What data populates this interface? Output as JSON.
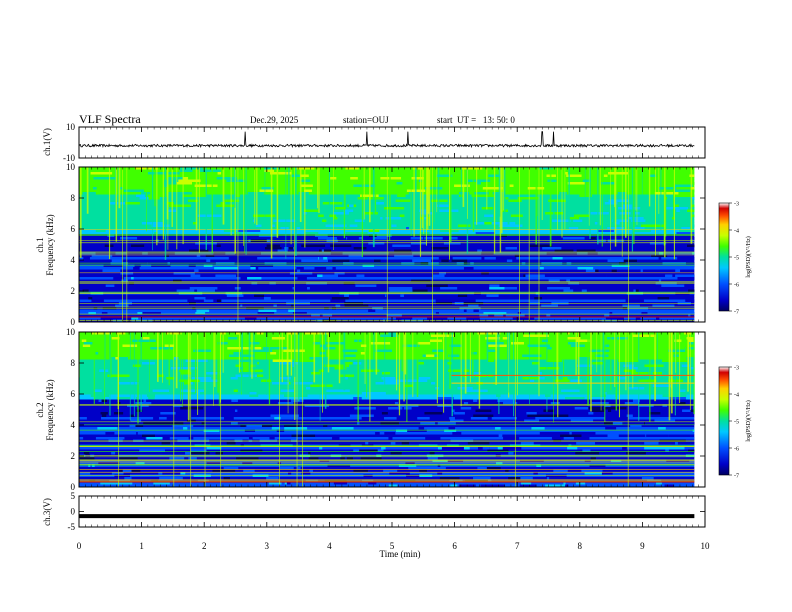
{
  "header": {
    "title": "VLF Spectra",
    "date": "Dec.29, 2025",
    "station": "station=OUJ",
    "start": "start  UT =   13: 50: 0"
  },
  "chart_data": [
    {
      "type": "line",
      "name": "ch1-waveform",
      "ylabel": "ch.1(V)",
      "ylim": [
        -10,
        10
      ],
      "yticks": [
        "10",
        "-10"
      ],
      "baseline_v": -2,
      "spikes_min": [
        2.65,
        4.6,
        5.25,
        7.4,
        7.58
      ]
    },
    {
      "type": "heatmap",
      "name": "ch1-spectrogram",
      "ylabel": "ch.1\nFrequency (kHz)",
      "ylim": [
        0,
        10
      ],
      "yticks": [
        "0",
        "2",
        "4",
        "6",
        "8",
        "10"
      ],
      "colorbar": {
        "label": "log(PSD)(V²/Hz)",
        "range": [
          -7,
          -3
        ],
        "ticks": [
          "-3",
          "-4",
          "-5",
          "-6",
          "-7"
        ]
      }
    },
    {
      "type": "heatmap",
      "name": "ch2-spectrogram",
      "ylabel": "ch.2\nFrequency (kHz)",
      "ylim": [
        0,
        10
      ],
      "yticks": [
        "0",
        "2",
        "4",
        "6",
        "8",
        "10"
      ],
      "colorbar": {
        "label": "log(PSD)(V²/Hz)",
        "range": [
          -7,
          -3
        ],
        "ticks": [
          "-3",
          "-4",
          "-5",
          "-6",
          "-7"
        ]
      }
    },
    {
      "type": "line",
      "name": "ch3-waveform",
      "ylabel": "ch.3(V)",
      "ylim": [
        -5,
        5
      ],
      "yticks": [
        "5",
        "0",
        "-5"
      ],
      "baseline_v": -1.5
    }
  ],
  "xaxis": {
    "label": "Time (min)",
    "xlim": [
      0,
      10
    ],
    "data_end_min": 9.83,
    "ticks": [
      "0",
      "1",
      "2",
      "3",
      "4",
      "5",
      "6",
      "7",
      "8",
      "9",
      "10"
    ]
  },
  "colors": {
    "colormap": [
      "#000060",
      "#0000c8",
      "#0050ff",
      "#00c8ff",
      "#00e0a0",
      "#40ff00",
      "#c8ff00",
      "#ffd000",
      "#ff5000",
      "#d00000",
      "#ffffff"
    ]
  }
}
